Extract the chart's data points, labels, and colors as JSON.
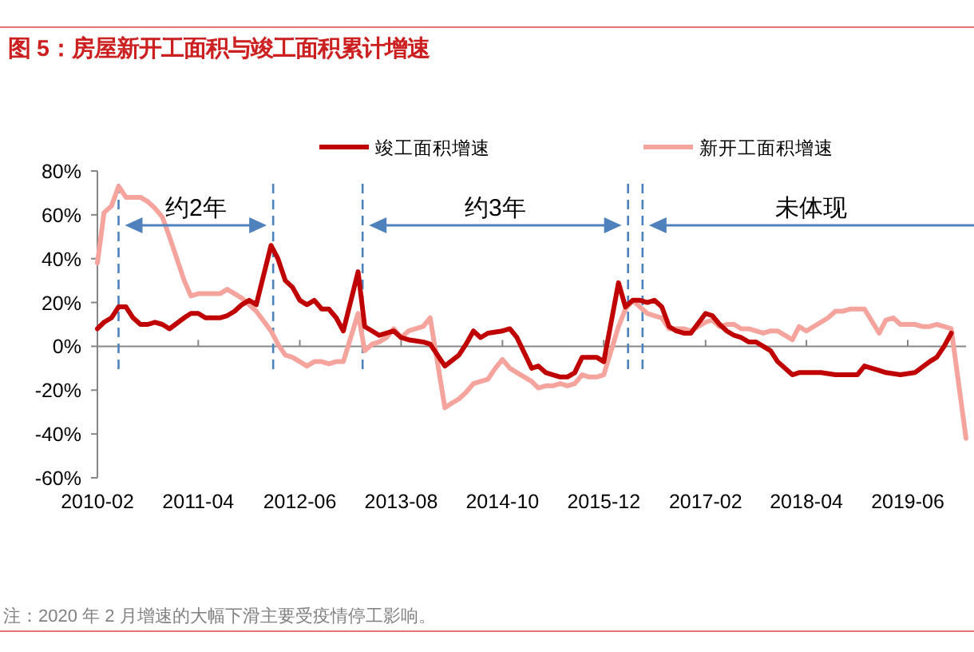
{
  "chart_data": {
    "type": "line",
    "title": "图 5：房屋新开工面积与竣工面积累计增速",
    "xlim": [
      "2010-02",
      "2020-02"
    ],
    "xticks": [
      "2010-02",
      "2011-04",
      "2012-06",
      "2013-08",
      "2014-10",
      "2015-12",
      "2017-02",
      "2018-04",
      "2019-06"
    ],
    "ylim": [
      -60,
      80
    ],
    "yticks": [
      {
        "value": -60,
        "label": "-60%"
      },
      {
        "value": -40,
        "label": "-40%"
      },
      {
        "value": -20,
        "label": "-20%"
      },
      {
        "value": 0,
        "label": "0%"
      },
      {
        "value": 20,
        "label": "20%"
      },
      {
        "value": 40,
        "label": "40%"
      },
      {
        "value": 60,
        "label": "60%"
      },
      {
        "value": 80,
        "label": "80%"
      }
    ],
    "legend": "top",
    "series": [
      {
        "name": "竣工面积增速",
        "color": "#c00000",
        "x": [
          "2010-02",
          "2010-03",
          "2010-04",
          "2010-05",
          "2010-06",
          "2010-07",
          "2010-08",
          "2010-09",
          "2010-10",
          "2010-11",
          "2010-12",
          "2011-02",
          "2011-03",
          "2011-04",
          "2011-05",
          "2011-07",
          "2011-08",
          "2011-09",
          "2011-10",
          "2011-11",
          "2011-12",
          "2012-02",
          "2012-03",
          "2012-04",
          "2012-05",
          "2012-06",
          "2012-07",
          "2012-08",
          "2012-09",
          "2012-10",
          "2012-11",
          "2012-12",
          "2013-02",
          "2013-03",
          "2013-04",
          "2013-05",
          "2013-07",
          "2013-08",
          "2013-09",
          "2013-11",
          "2013-12",
          "2014-02",
          "2014-04",
          "2014-05",
          "2014-06",
          "2014-07",
          "2014-08",
          "2014-10",
          "2014-11",
          "2014-12",
          "2015-02",
          "2015-03",
          "2015-04",
          "2015-05",
          "2015-06",
          "2015-07",
          "2015-08",
          "2015-09",
          "2015-11",
          "2015-12",
          "2016-02",
          "2016-03",
          "2016-04",
          "2016-05",
          "2016-06",
          "2016-07",
          "2016-08",
          "2016-09",
          "2016-10",
          "2016-11",
          "2016-12",
          "2017-02",
          "2017-03",
          "2017-04",
          "2017-05",
          "2017-06",
          "2017-07",
          "2017-08",
          "2017-09",
          "2017-10",
          "2017-11",
          "2017-12",
          "2018-02",
          "2018-03",
          "2018-06",
          "2018-08",
          "2018-10",
          "2018-11",
          "2018-12",
          "2019-02",
          "2019-03",
          "2019-05",
          "2019-07",
          "2019-09",
          "2019-10",
          "2019-11",
          "2019-12"
        ],
        "values": [
          8,
          11,
          13,
          18,
          18,
          13,
          10,
          10,
          11,
          10,
          8,
          13,
          15,
          15,
          13,
          13,
          14,
          16,
          19,
          21,
          19,
          46,
          40,
          30,
          27,
          21,
          19,
          21,
          17,
          17,
          13,
          7,
          34,
          9,
          7,
          5,
          7,
          4,
          3,
          2,
          1,
          -9,
          -4,
          1,
          7,
          4,
          6,
          7,
          8,
          4,
          -10,
          -9,
          -12,
          -13,
          -14,
          -14,
          -12,
          -5,
          -5,
          -7,
          29,
          18,
          21,
          21,
          20,
          21,
          18,
          9,
          7,
          6,
          6,
          15,
          14,
          10,
          7,
          5,
          4,
          2,
          2,
          0,
          -2,
          -7,
          -13,
          -12,
          -12,
          -13,
          -13,
          -13,
          -9,
          -11,
          -12,
          -13,
          -12,
          -7,
          -5,
          0,
          6
        ]
      },
      {
        "name": "新开工面积增速",
        "color": "#f5a39d",
        "x": [
          "2010-02",
          "2010-03",
          "2010-04",
          "2010-05",
          "2010-06",
          "2010-07",
          "2010-08",
          "2010-09",
          "2010-10",
          "2010-11",
          "2010-12",
          "2011-02",
          "2011-03",
          "2011-04",
          "2011-06",
          "2011-07",
          "2011-08",
          "2011-09",
          "2011-10",
          "2011-11",
          "2011-12",
          "2012-02",
          "2012-03",
          "2012-04",
          "2012-05",
          "2012-06",
          "2012-07",
          "2012-08",
          "2012-09",
          "2012-10",
          "2012-11",
          "2012-12",
          "2013-02",
          "2013-03",
          "2013-04",
          "2013-05",
          "2013-06",
          "2013-07",
          "2013-08",
          "2013-09",
          "2013-10",
          "2013-11",
          "2013-12",
          "2014-02",
          "2014-03",
          "2014-04",
          "2014-05",
          "2014-06",
          "2014-07",
          "2014-08",
          "2014-09",
          "2014-10",
          "2014-11",
          "2014-12",
          "2015-02",
          "2015-03",
          "2015-04",
          "2015-05",
          "2015-06",
          "2015-07",
          "2015-08",
          "2015-09",
          "2015-10",
          "2015-11",
          "2015-12",
          "2016-02",
          "2016-03",
          "2016-04",
          "2016-05",
          "2016-06",
          "2016-07",
          "2016-08",
          "2016-09",
          "2016-10",
          "2016-11",
          "2016-12",
          "2017-02",
          "2017-03",
          "2017-04",
          "2017-05",
          "2017-06",
          "2017-07",
          "2017-08",
          "2017-09",
          "2017-10",
          "2017-11",
          "2017-12",
          "2018-02",
          "2018-03",
          "2018-04",
          "2018-05",
          "2018-06",
          "2018-07",
          "2018-08",
          "2018-09",
          "2018-10",
          "2018-11",
          "2018-12",
          "2019-02",
          "2019-03",
          "2019-04",
          "2019-05",
          "2019-06",
          "2019-07",
          "2019-08",
          "2019-09",
          "2019-10",
          "2019-11",
          "2019-12",
          "2020-02"
        ],
        "values": [
          38,
          61,
          64,
          73,
          68,
          68,
          68,
          66,
          63,
          59,
          50,
          30,
          23,
          24,
          24,
          24,
          26,
          24,
          22,
          19,
          16,
          7,
          1,
          -4,
          -5,
          -7,
          -9,
          -7,
          -7,
          -8,
          -7,
          -7,
          15,
          -2,
          1,
          2,
          4,
          8,
          4,
          7,
          8,
          9,
          13,
          -28,
          -26,
          -24,
          -21,
          -17,
          -16,
          -15,
          -10,
          -6,
          -10,
          -12,
          -16,
          -19,
          -18,
          -18,
          -17,
          -18,
          -17,
          -13,
          -14,
          -14,
          -13,
          9,
          17,
          21,
          18,
          15,
          14,
          13,
          8,
          8,
          8,
          7,
          11,
          12,
          9,
          10,
          10,
          8,
          8,
          7,
          6,
          7,
          7,
          3,
          9,
          7,
          9,
          11,
          13,
          16,
          16,
          17,
          17,
          17,
          6,
          12,
          13,
          10,
          10,
          10,
          9,
          9,
          10,
          9,
          8,
          -42
        ]
      }
    ],
    "ref_lines": [
      {
        "axis": "x",
        "value": "2010-05",
        "color": "#4f81bd",
        "line_style": "dashed"
      },
      {
        "axis": "x",
        "value": "2012-02-10",
        "color": "#4f81bd",
        "line_style": "dashed"
      },
      {
        "axis": "x",
        "value": "2013-02-20",
        "color": "#4f81bd",
        "line_style": "dashed"
      },
      {
        "axis": "x",
        "value": "2016-03-12",
        "color": "#4f81bd",
        "line_style": "dashed"
      },
      {
        "axis": "x",
        "value": "2016-05-12",
        "color": "#4f81bd",
        "line_style": "dashed"
      }
    ],
    "annotations": [
      "约2年",
      "约3年",
      "未体现",
      "注：2020 年 2 月增速的大幅下滑主要受疫情停工影响。"
    ]
  }
}
